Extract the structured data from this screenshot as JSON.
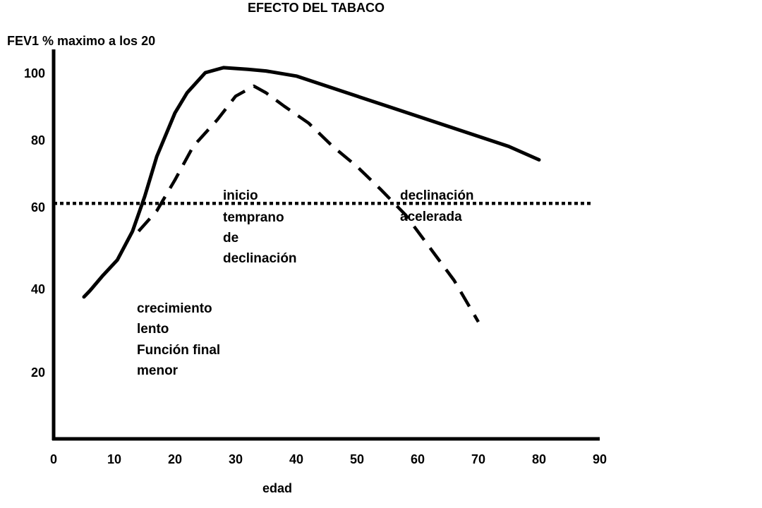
{
  "chart_data": {
    "type": "line",
    "title": "EFECTO DEL TABACO",
    "ylabel": "FEV1 % maximo a los 20",
    "xlabel": "edad",
    "xlim": [
      0,
      90
    ],
    "x_ticks": [
      "0",
      "10",
      "20",
      "30",
      "40",
      "50",
      "60",
      "70",
      "80",
      "90"
    ],
    "y_ticks": [
      "100",
      "80",
      "60",
      "40",
      "20"
    ],
    "y_tick_values": [
      100,
      80,
      60,
      40,
      20
    ],
    "grid": false,
    "series": [
      {
        "style": "solid",
        "x": [
          5,
          6,
          8,
          10.5,
          13,
          15,
          17,
          20,
          22,
          25,
          28,
          32,
          35,
          40,
          45,
          50,
          55,
          60,
          65,
          70,
          75,
          80
        ],
        "y": [
          38,
          39.5,
          43,
          47,
          54,
          63,
          75,
          88,
          94,
          100,
          101.5,
          101,
          100.5,
          99,
          96,
          93,
          90,
          87,
          84,
          81,
          78,
          74
        ]
      },
      {
        "style": "dashed",
        "x": [
          14,
          17,
          20,
          23,
          27,
          30,
          33,
          35,
          38,
          42,
          46,
          50,
          54,
          58,
          62,
          66,
          70
        ],
        "y": [
          54,
          59,
          68,
          78,
          86,
          93,
          96,
          94,
          90,
          85,
          78,
          72,
          65,
          58,
          50,
          42,
          32
        ]
      },
      {
        "style": "dotted",
        "x": [
          0,
          88.5
        ],
        "y": [
          61,
          61
        ]
      }
    ],
    "annotations": [
      {
        "id": "inicio",
        "lines": [
          "inicio",
          "temprano",
          "de",
          "declinación"
        ]
      },
      {
        "id": "declinacion",
        "lines": [
          "declinación",
          "acelerada"
        ]
      },
      {
        "id": "crecimiento",
        "lines": [
          "crecimiento",
          "lento",
          "Función final",
          "menor"
        ]
      }
    ]
  }
}
